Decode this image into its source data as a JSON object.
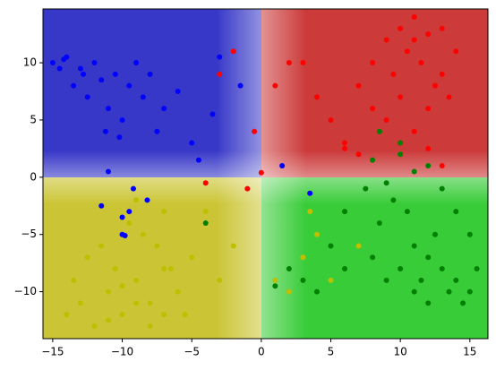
{
  "chart_data": {
    "type": "scatter",
    "xlim": [
      -15.7,
      16.3
    ],
    "ylim": [
      -14.1,
      14.7
    ],
    "xticks": [
      {
        "value": -15,
        "label": "−15"
      },
      {
        "value": -10,
        "label": "−10"
      },
      {
        "value": -5,
        "label": "−5"
      },
      0,
      5,
      10,
      15
    ],
    "yticks": [
      {
        "value": -10,
        "label": "−10"
      },
      {
        "value": -5,
        "label": "−5"
      },
      0,
      5,
      10
    ],
    "series": [
      {
        "color": "#0000ff",
        "x": [
          -15,
          -14.5,
          -14,
          -13.5,
          -13,
          -12.5,
          -12,
          -11.5,
          -11,
          -10.5,
          -10,
          -9.5,
          -9,
          -8.5,
          -8,
          -7.5,
          -7,
          -6,
          -5,
          -4.5,
          -14.2,
          -12.8,
          -11.2,
          -10.2,
          -9.2,
          -8.2,
          -11,
          -10,
          -9.5,
          -11.5,
          -3,
          -1.5,
          -3.5,
          1.5,
          3.5,
          -10,
          -9.8
        ],
        "y": [
          10,
          9.5,
          10.5,
          8,
          9.5,
          7,
          10,
          8.5,
          6,
          9,
          5,
          8,
          10,
          7,
          9,
          4,
          6,
          7.5,
          3,
          1.5,
          10.3,
          9,
          4,
          3.5,
          -1,
          -2,
          0.5,
          -5,
          -3,
          -2.5,
          10.5,
          8,
          5.5,
          1,
          -1.4,
          -3.5,
          -5.1
        ]
      },
      {
        "color": "#ff0000",
        "x": [
          9,
          10,
          11,
          12,
          13,
          14,
          8,
          9.5,
          10.5,
          11.5,
          12.5,
          13.5,
          7,
          8,
          9,
          10,
          11,
          12,
          13,
          5,
          6,
          7,
          3,
          4,
          2,
          1,
          0,
          -1,
          -2,
          -3,
          -4,
          10,
          11,
          12,
          13,
          6,
          -0.5
        ],
        "y": [
          12,
          13,
          14,
          12.5,
          13,
          11,
          10,
          9,
          11,
          10,
          8,
          7,
          8,
          6,
          5,
          7,
          12,
          6,
          9,
          5,
          3,
          2,
          10,
          7,
          10,
          8,
          0.4,
          -1,
          11,
          9,
          -0.5,
          3,
          4,
          2.5,
          1,
          2.5,
          4
        ]
      },
      {
        "color": "#bfbf00",
        "x": [
          -14,
          -13,
          -12,
          -11,
          -10,
          -9,
          -8,
          -7,
          -6,
          -5,
          -4,
          -13.5,
          -12.5,
          -11.5,
          -10.5,
          -9.5,
          -8.5,
          -7.5,
          -6.5,
          -5.5,
          -12,
          -11,
          -10,
          -9,
          -8,
          -7,
          -3,
          -2,
          1,
          2,
          3,
          4,
          5,
          7,
          3.5,
          -9,
          -7
        ],
        "y": [
          -12,
          -11,
          -13,
          -10,
          -12,
          -9,
          -11,
          -8,
          -10,
          -7,
          -3,
          -9,
          -7,
          -6,
          -8,
          -4,
          -5,
          -6,
          -8,
          -12,
          -13,
          -12.5,
          -9.5,
          -11,
          -13,
          -12,
          -9,
          -6,
          -9,
          -10,
          -7,
          -5,
          -9,
          -6,
          -3,
          -2,
          -3
        ]
      },
      {
        "color": "#008000",
        "x": [
          14,
          15,
          13,
          12,
          11,
          10,
          9,
          8,
          14.5,
          15.5,
          13.5,
          12.5,
          11.5,
          10.5,
          9.5,
          8.5,
          7.5,
          6,
          5,
          4,
          3,
          2,
          15,
          14,
          13,
          12,
          11,
          10,
          9,
          8,
          12,
          11,
          -4,
          1,
          6,
          10,
          8.5
        ],
        "y": [
          -9,
          -10,
          -8,
          -7,
          -6,
          -8,
          -9,
          -7,
          -11,
          -8,
          -10,
          -5,
          -9,
          -3,
          -2,
          -4,
          -1,
          -8,
          -6,
          -10,
          -9,
          -8,
          -5,
          -3,
          -1,
          1,
          0.5,
          2,
          -0.5,
          1.5,
          -11,
          -10,
          -4,
          -9.5,
          -3,
          3,
          4
        ]
      }
    ]
  }
}
